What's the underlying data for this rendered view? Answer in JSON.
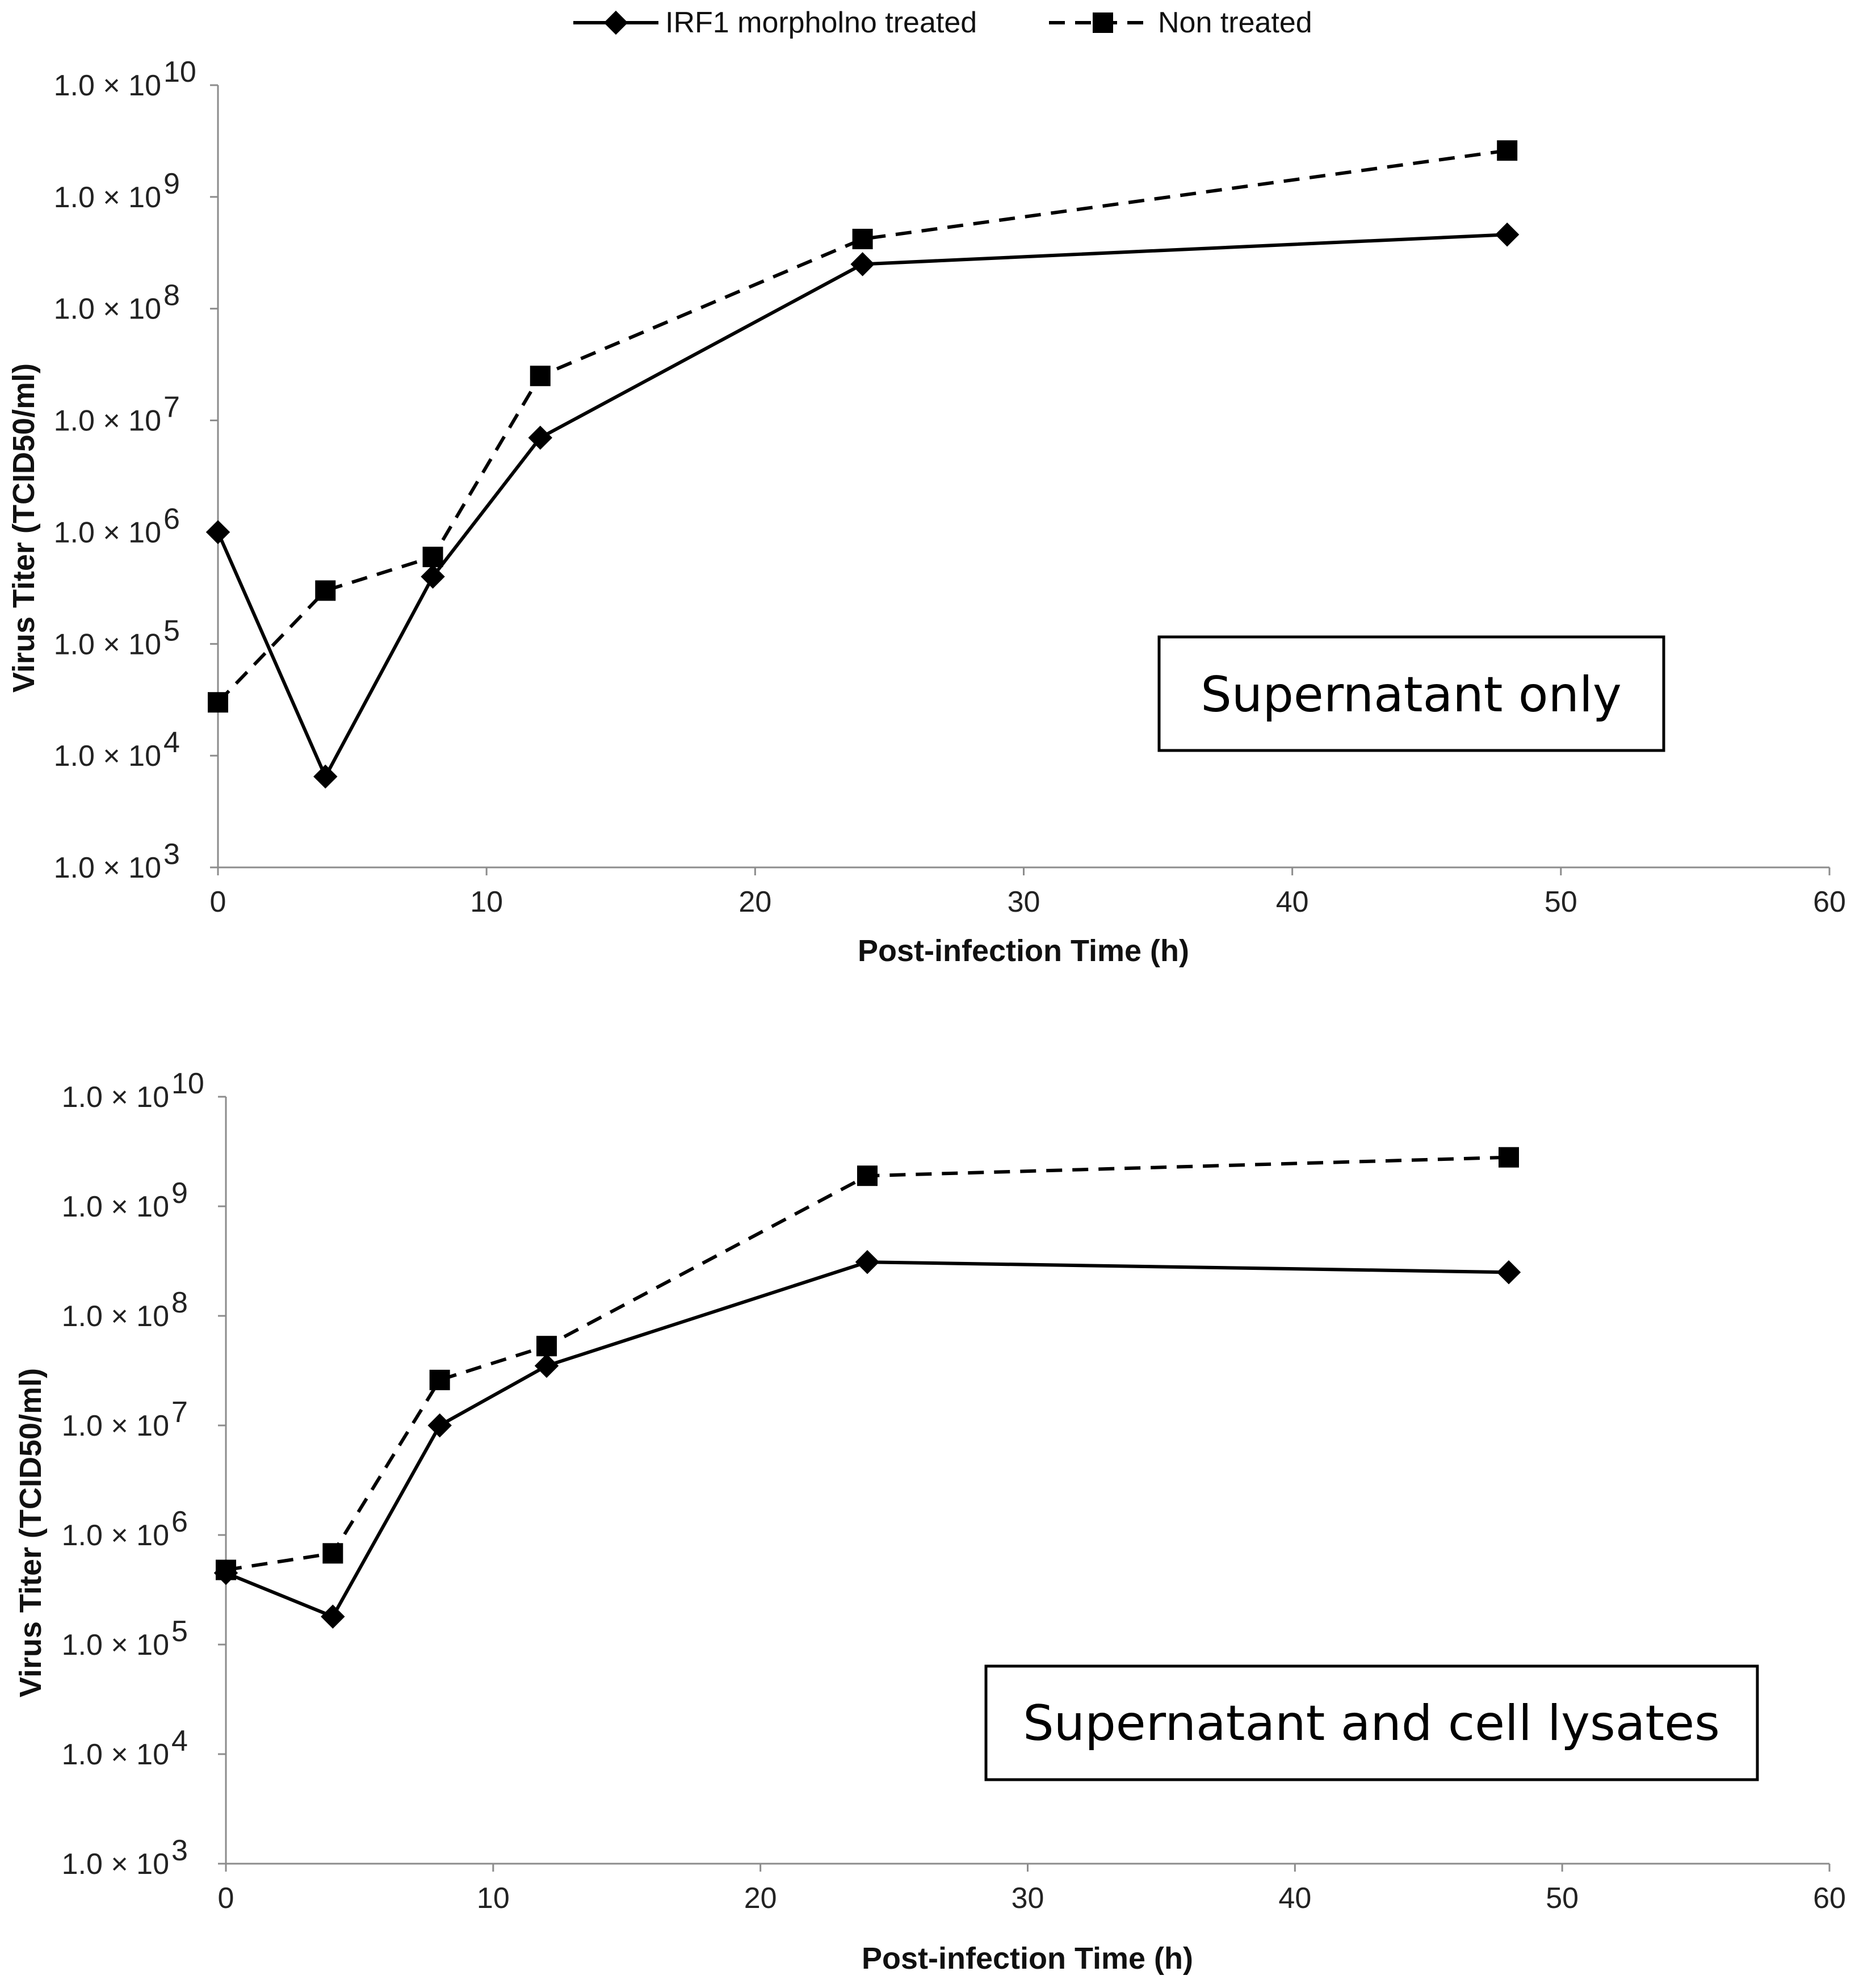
{
  "legend": {
    "entries": [
      {
        "label": "IRF1 morpholno treated",
        "marker": "diamond",
        "dash": "solid"
      },
      {
        "label": "Non treated",
        "marker": "square",
        "dash": "dashed"
      }
    ]
  },
  "colors": {
    "line": "#000000",
    "axis": "#8c8c8c",
    "background": "#ffffff"
  },
  "chart_data": [
    {
      "type": "line",
      "annotation": "Supernatant only",
      "xlabel": "Post-infection Time (h)",
      "ylabel": "Virus Titer (TCID50/ml)",
      "xlim": [
        0,
        60
      ],
      "ylim": [
        1000,
        10000000000
      ],
      "yscale": "log",
      "grid": false,
      "x_ticks": [
        0,
        10,
        20,
        30,
        40,
        50,
        60
      ],
      "y_ticks": [
        {
          "mantissa": "1.0 × 10",
          "exp": "3"
        },
        {
          "mantissa": "1.0 × 10",
          "exp": "4"
        },
        {
          "mantissa": "1.0 × 10",
          "exp": "5"
        },
        {
          "mantissa": "1.0 × 10",
          "exp": "6"
        },
        {
          "mantissa": "1.0 × 10",
          "exp": "7"
        },
        {
          "mantissa": "1.0 × 10",
          "exp": "8"
        },
        {
          "mantissa": "1.0 × 10",
          "exp": "9"
        },
        {
          "mantissa": "1.0 × 10",
          "exp": "10"
        }
      ],
      "series": [
        {
          "name": "IRF1 morpholno treated",
          "x": [
            0,
            4,
            8,
            12,
            24,
            48
          ],
          "values": [
            1000000,
            6500,
            400000,
            7000000,
            250000000,
            460000000
          ]
        },
        {
          "name": "Non treated",
          "x": [
            0,
            4,
            8,
            12,
            24,
            48
          ],
          "values": [
            30000,
            300000,
            600000,
            25000000,
            420000000,
            2600000000
          ]
        }
      ]
    },
    {
      "type": "line",
      "annotation": "Supernatant and cell lysates",
      "xlabel": "Post-infection Time (h)",
      "ylabel": "Virus Titer (TCID50/ml)",
      "xlim": [
        0,
        60
      ],
      "ylim": [
        1000,
        10000000000
      ],
      "yscale": "log",
      "grid": false,
      "x_ticks": [
        0,
        10,
        20,
        30,
        40,
        50,
        60
      ],
      "y_ticks": [
        {
          "mantissa": "1.0 × 10",
          "exp": "3"
        },
        {
          "mantissa": "1.0 × 10",
          "exp": "4"
        },
        {
          "mantissa": "1.0 × 10",
          "exp": "5"
        },
        {
          "mantissa": "1.0 × 10",
          "exp": "6"
        },
        {
          "mantissa": "1.0 × 10",
          "exp": "7"
        },
        {
          "mantissa": "1.0 × 10",
          "exp": "8"
        },
        {
          "mantissa": "1.0 × 10",
          "exp": "9"
        },
        {
          "mantissa": "1.0 × 10",
          "exp": "10"
        }
      ],
      "series": [
        {
          "name": "IRF1 morpholno treated",
          "x": [
            0,
            4,
            8,
            12,
            24,
            48
          ],
          "values": [
            450000,
            180000,
            10000000,
            35000000,
            310000000,
            250000000
          ]
        },
        {
          "name": "Non treated",
          "x": [
            0,
            4,
            8,
            12,
            24,
            48
          ],
          "values": [
            480000,
            680000,
            26000000,
            53000000,
            1900000000,
            2800000000
          ]
        }
      ]
    }
  ]
}
